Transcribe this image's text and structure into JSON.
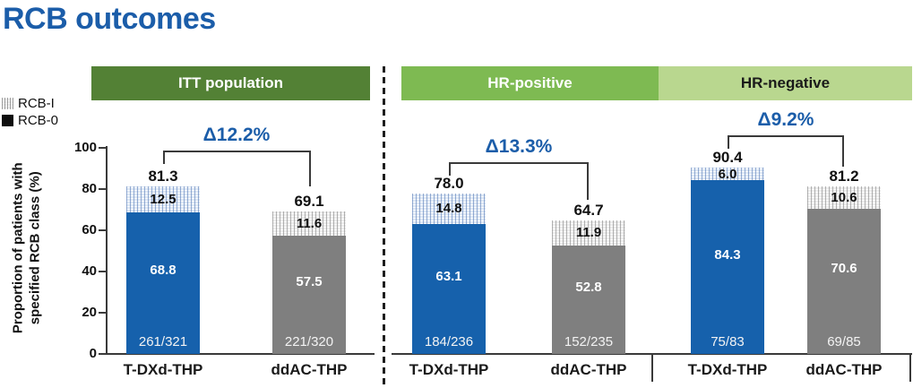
{
  "title": "RCB outcomes",
  "legend": {
    "rcb1_label": "RCB-I",
    "rcb0_label": "RCB-0"
  },
  "axis": {
    "ylabel_line1": "Proportion of patients with",
    "ylabel_line2": "specified RCB class (%)",
    "ticks": [
      "100",
      "80",
      "60",
      "40",
      "20",
      "0"
    ]
  },
  "colors": {
    "title_blue": "#1b5da9",
    "bar_blue": "#1661ac",
    "bar_gray": "#7f7f7f",
    "header_dark_green": "#538135",
    "header_mid_green": "#7eba52",
    "header_light_green": "#b9d78f"
  },
  "chart_data": {
    "type": "bar",
    "stacked": true,
    "unit": "%",
    "ylim": [
      0,
      100
    ],
    "ylabel": "Proportion of patients with specified RCB class (%)",
    "segments": [
      "RCB-0",
      "RCB-I"
    ],
    "groups": [
      {
        "name": "ITT population",
        "delta": "Δ12.2%",
        "bars": [
          {
            "arm": "T-DXd-THP",
            "total": "81.3",
            "rcb1": "12.5",
            "rcb0": "68.8",
            "fraction": "261/321"
          },
          {
            "arm": "ddAC-THP",
            "total": "69.1",
            "rcb1": "11.6",
            "rcb0": "57.5",
            "fraction": "221/320"
          }
        ]
      },
      {
        "name": "HR-positive",
        "delta": "Δ13.3%",
        "bars": [
          {
            "arm": "T-DXd-THP",
            "total": "78.0",
            "rcb1": "14.8",
            "rcb0": "63.1",
            "fraction": "184/236"
          },
          {
            "arm": "ddAC-THP",
            "total": "64.7",
            "rcb1": "11.9",
            "rcb0": "52.8",
            "fraction": "152/235"
          }
        ]
      },
      {
        "name": "HR-negative",
        "delta": "Δ9.2%",
        "bars": [
          {
            "arm": "T-DXd-THP",
            "total": "90.4",
            "rcb1": "6.0",
            "rcb0": "84.3",
            "fraction": "75/83"
          },
          {
            "arm": "ddAC-THP",
            "total": "81.2",
            "rcb1": "10.6",
            "rcb0": "70.6",
            "fraction": "69/85"
          }
        ]
      }
    ]
  }
}
